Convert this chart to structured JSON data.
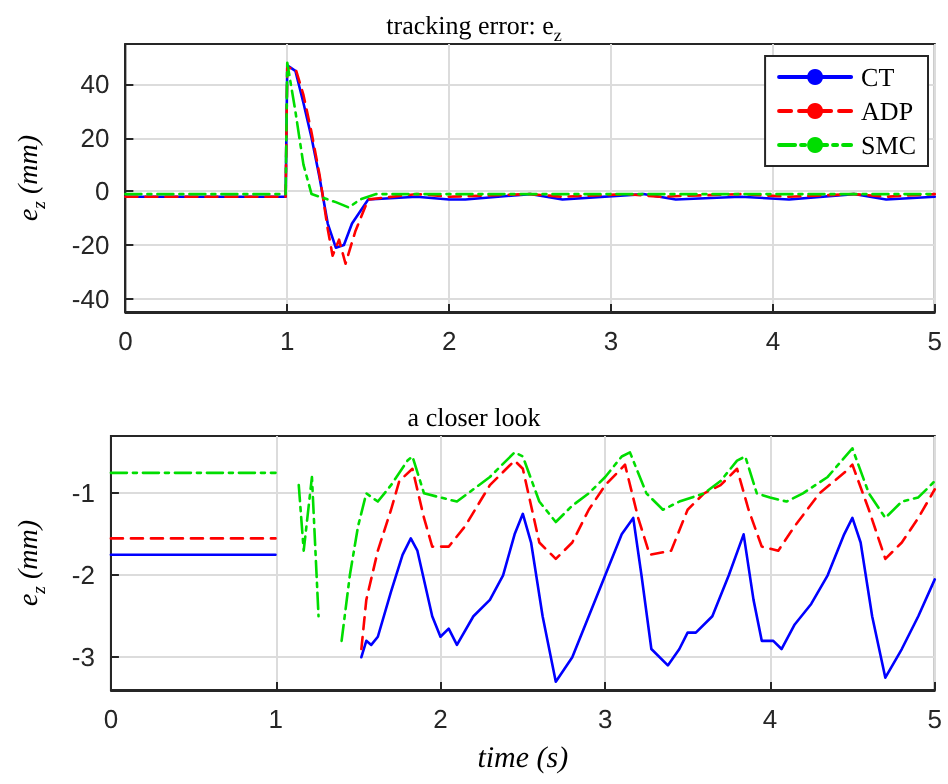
{
  "chart_data": [
    {
      "type": "line",
      "title": "tracking error: e$_{z}$",
      "ylabel": "e$_{z}$ (mm)",
      "xlim": [
        0,
        5
      ],
      "xticks": [
        0,
        1,
        2,
        3,
        4,
        5
      ],
      "ylim": [
        -45,
        55
      ],
      "yticks": [
        -40,
        -20,
        0,
        20,
        40
      ],
      "grid": true,
      "legend": "top right",
      "marker": "none",
      "series": [
        {
          "name": "CT",
          "color": "#0000ff",
          "line_style": "solid",
          "x": [
            0,
            0.99,
            1,
            1.05,
            1.1,
            1.15,
            1.2,
            1.25,
            1.3,
            1.35,
            1.4,
            1.5,
            1.8,
            2.0,
            2.1,
            2.5,
            2.7,
            3.2,
            3.4,
            3.8,
            4.1,
            4.5,
            4.7,
            5
          ],
          "values": [
            -2,
            -2,
            47,
            45,
            33,
            20,
            5,
            -12,
            -21,
            -20,
            -12,
            -3,
            -2,
            -3,
            -3,
            -1,
            -3,
            -1,
            -3,
            -2,
            -3,
            -1,
            -3,
            -2
          ]
        },
        {
          "name": "ADP",
          "color": "#ff0000",
          "line_style": "dashed",
          "x": [
            0,
            0.99,
            1,
            1.05,
            1.1,
            1.15,
            1.2,
            1.25,
            1.28,
            1.32,
            1.36,
            1.42,
            1.5,
            1.8,
            2.0,
            2.5,
            2.7,
            3.1,
            3.3,
            3.8,
            4.1,
            4.5,
            4.7,
            5
          ],
          "values": [
            -2,
            -2,
            46,
            46,
            36,
            22,
            6,
            -14,
            -24,
            -18,
            -27,
            -15,
            -3,
            -1,
            -2,
            -1,
            -2,
            -1,
            -2,
            -1,
            -2,
            -1,
            -2,
            -1
          ]
        },
        {
          "name": "SMC",
          "color": "#00dd00",
          "line_style": "dashdot",
          "x": [
            0,
            0.99,
            1,
            1.05,
            1.1,
            1.15,
            1.2,
            1.3,
            1.38,
            1.45,
            1.55,
            1.8,
            2.1,
            2.5,
            2.7,
            3.2,
            3.4,
            3.8,
            4.1,
            4.5,
            4.7,
            5
          ],
          "values": [
            -1,
            -1,
            48,
            30,
            10,
            -1,
            -2,
            -4,
            -6,
            -3,
            -1,
            -1,
            -1,
            -1,
            -1,
            -1,
            -1,
            -1,
            -1,
            -1,
            -1,
            -1
          ]
        }
      ]
    },
    {
      "type": "line",
      "title": "a closer look",
      "xlabel": "time (s)",
      "ylabel": "e$_{z}$ (mm)",
      "xlim": [
        0,
        5
      ],
      "xticks": [
        0,
        1,
        2,
        3,
        4,
        5
      ],
      "ylim": [
        -3.4,
        -0.3
      ],
      "yticks": [
        -3,
        -2,
        -1
      ],
      "grid": true,
      "marker": "none",
      "series": [
        {
          "color": "#0000ff",
          "line_style": "solid",
          "x": [
            0,
            0.999,
            1,
            1.5,
            1.52,
            1.55,
            1.58,
            1.62,
            1.7,
            1.77,
            1.82,
            1.86,
            1.95,
            2.0,
            2.05,
            2.1,
            2.2,
            2.3,
            2.38,
            2.45,
            2.5,
            2.55,
            2.62,
            2.7,
            2.8,
            2.9,
            3.0,
            3.1,
            3.17,
            3.22,
            3.28,
            3.38,
            3.45,
            3.5,
            3.55,
            3.65,
            3.75,
            3.84,
            3.9,
            3.95,
            4.02,
            4.07,
            4.15,
            4.25,
            4.35,
            4.45,
            4.5,
            4.55,
            4.62,
            4.7,
            4.8,
            4.9,
            5.0
          ],
          "values": [
            -1.75,
            -1.75,
            null,
            null,
            -3.0,
            -2.8,
            -2.85,
            -2.75,
            -2.2,
            -1.75,
            -1.55,
            -1.7,
            -2.5,
            -2.75,
            -2.65,
            -2.85,
            -2.5,
            -2.3,
            -2.0,
            -1.5,
            -1.25,
            -1.6,
            -2.5,
            -3.3,
            -3.0,
            -2.5,
            -2.0,
            -1.5,
            -1.3,
            -2.0,
            -2.9,
            -3.1,
            -2.9,
            -2.7,
            -2.7,
            -2.5,
            -2.0,
            -1.5,
            -2.3,
            -2.8,
            -2.8,
            -2.9,
            -2.6,
            -2.35,
            -2.0,
            -1.5,
            -1.3,
            -1.6,
            -2.5,
            -3.25,
            -2.9,
            -2.5,
            -2.05
          ]
        },
        {
          "color": "#ff0000",
          "line_style": "dashed",
          "x": [
            0,
            0.999,
            1,
            1.5,
            1.52,
            1.55,
            1.62,
            1.7,
            1.75,
            1.83,
            1.9,
            1.95,
            2.05,
            2.15,
            2.3,
            2.45,
            2.5,
            2.6,
            2.7,
            2.8,
            2.9,
            3.0,
            3.12,
            3.2,
            3.27,
            3.4,
            3.5,
            3.6,
            3.7,
            3.8,
            3.87,
            3.95,
            4.05,
            4.15,
            4.3,
            4.45,
            4.5,
            4.6,
            4.7,
            4.8,
            4.9,
            5.0
          ],
          "values": [
            -1.55,
            -1.55,
            null,
            null,
            -2.9,
            -2.3,
            -1.7,
            -1.2,
            -0.85,
            -0.7,
            -1.3,
            -1.65,
            -1.65,
            -1.4,
            -0.9,
            -0.6,
            -0.7,
            -1.6,
            -1.8,
            -1.6,
            -1.2,
            -0.9,
            -0.65,
            -1.3,
            -1.75,
            -1.7,
            -1.2,
            -1.0,
            -0.9,
            -0.7,
            -1.2,
            -1.65,
            -1.7,
            -1.4,
            -1.0,
            -0.75,
            -0.65,
            -1.2,
            -1.8,
            -1.6,
            -1.3,
            -0.95
          ]
        },
        {
          "color": "#00dd00",
          "line_style": "dashdot",
          "x": [
            0,
            0.999,
            1,
            1.13,
            1.14,
            1.17,
            1.22,
            1.26,
            1.3,
            1.4,
            1.45,
            1.5,
            1.55,
            1.62,
            1.7,
            1.8,
            1.83,
            1.9,
            2.0,
            2.1,
            2.2,
            2.3,
            2.45,
            2.5,
            2.6,
            2.7,
            2.8,
            2.9,
            3.0,
            3.1,
            3.15,
            3.25,
            3.35,
            3.45,
            3.6,
            3.7,
            3.8,
            3.85,
            3.92,
            4.0,
            4.1,
            4.2,
            4.35,
            4.5,
            4.6,
            4.7,
            4.8,
            4.9,
            5.0
          ],
          "values": [
            -0.75,
            -0.75,
            null,
            null,
            -0.9,
            -1.7,
            -0.8,
            -2.5,
            null,
            -2.8,
            -2.0,
            -1.4,
            -1.0,
            -1.1,
            -0.9,
            -0.6,
            -0.55,
            -1.0,
            -1.05,
            -1.1,
            -0.95,
            -0.8,
            -0.5,
            -0.55,
            -1.1,
            -1.35,
            -1.15,
            -1.0,
            -0.8,
            -0.55,
            -0.5,
            -1.0,
            -1.2,
            -1.1,
            -1.0,
            -0.85,
            -0.6,
            -0.55,
            -1.0,
            -1.05,
            -1.1,
            -1.0,
            -0.8,
            -0.45,
            -1.0,
            -1.3,
            -1.1,
            -1.05,
            -0.85
          ]
        }
      ]
    }
  ]
}
